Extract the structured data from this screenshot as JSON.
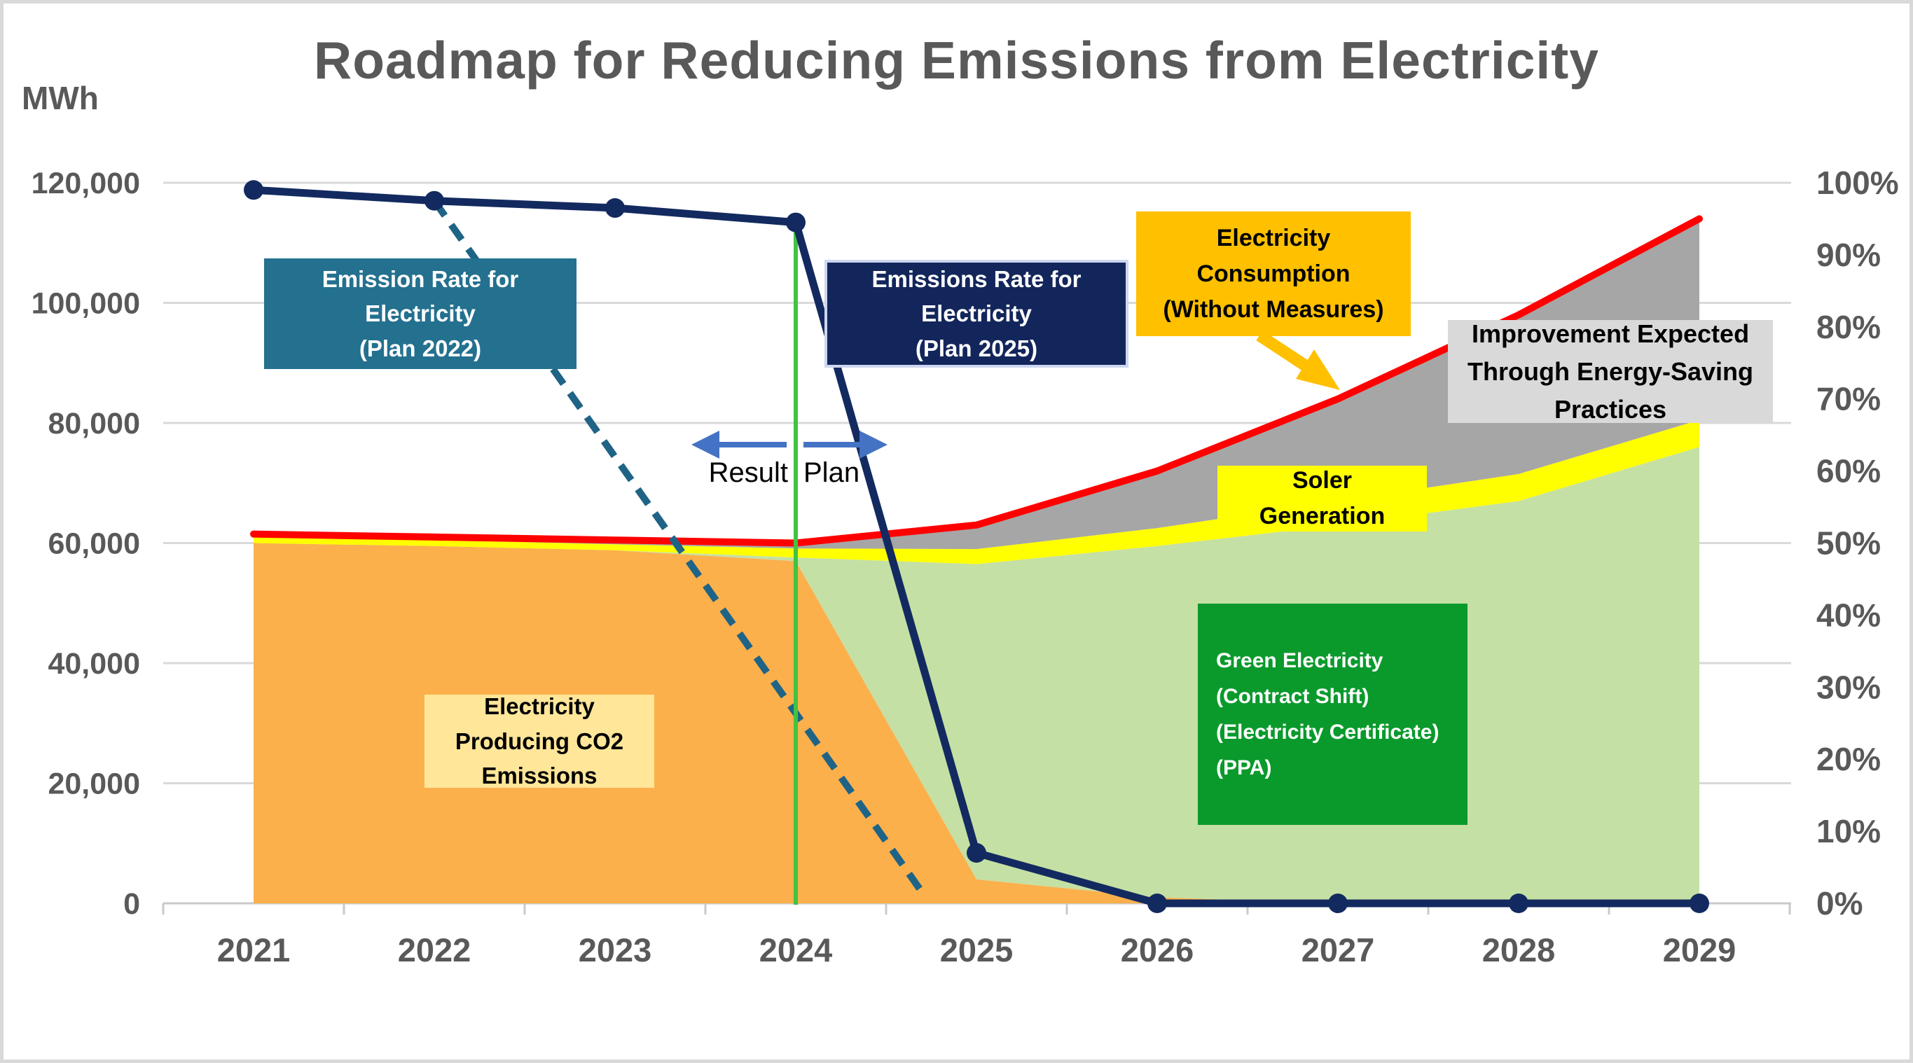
{
  "title": "Roadmap for Reducing Emissions from Electricity",
  "y_axis_left": {
    "unit_label": "MWh",
    "min": 0,
    "max": 120000,
    "step": 20000,
    "ticks_top_to_bottom": [
      "120,000",
      "100,000",
      "80,000",
      "60,000",
      "40,000",
      "20,000",
      "0"
    ]
  },
  "y_axis_right": {
    "min_pct": 0,
    "max_pct": 100,
    "step_pct": 10,
    "ticks_top_to_bottom": [
      "100%",
      "90%",
      "80%",
      "70%",
      "60%",
      "50%",
      "40%",
      "30%",
      "20%",
      "10%",
      "0%"
    ]
  },
  "x_axis": {
    "categories": [
      "2021",
      "2022",
      "2023",
      "2024",
      "2025",
      "2026",
      "2027",
      "2028",
      "2029"
    ]
  },
  "divider": {
    "year_position": "2024",
    "result_label": "Result",
    "plan_label": "Plan"
  },
  "annotations": {
    "plan2022": {
      "lines": [
        "Emission Rate for",
        "Electricity",
        "(Plan 2022)"
      ]
    },
    "plan2025": {
      "lines": [
        "Emissions Rate for",
        "Electricity",
        "(Plan 2025)"
      ]
    },
    "consumption": {
      "lines": [
        "Electricity",
        "Consumption",
        "(Without Measures)"
      ]
    },
    "improvement": {
      "lines": [
        "Improvement Expected",
        "Through Energy-Saving",
        "Practices"
      ]
    },
    "solar": {
      "lines": [
        "Soler",
        "Generation"
      ]
    },
    "green": {
      "lines": [
        "Green Electricity",
        "(Contract Shift)",
        "(Electricity Certificate)",
        "(PPA)"
      ]
    },
    "co2": {
      "lines": [
        "Electricity",
        "Producing CO2",
        "Emissions"
      ]
    }
  },
  "chart_data": {
    "type": "combo_stacked_area_line",
    "categories": [
      2021,
      2022,
      2023,
      2024,
      2025,
      2026,
      2027,
      2028,
      2029
    ],
    "left_axis": {
      "unit": "MWh",
      "range": [
        0,
        120000
      ],
      "step": 20000
    },
    "right_axis": {
      "unit": "%",
      "range": [
        0,
        100
      ],
      "step": 10
    },
    "grid": true,
    "legend": "none (labeled via annotation boxes)",
    "divider_year": 2024,
    "series": [
      {
        "name": "Electricity Producing CO2 Emissions",
        "type": "stacked_area",
        "axis": "left",
        "color_key": "area_orange",
        "values_mwh": [
          60000,
          59500,
          58800,
          57000,
          4000,
          1000,
          0,
          0,
          0
        ]
      },
      {
        "name": "Green Electricity (Contract Shift / Electricity Certificate / PPA)",
        "type": "stacked_area",
        "axis": "left",
        "color_key": "area_green",
        "values_mwh": [
          0,
          0,
          0,
          600,
          52500,
          58500,
          63000,
          67000,
          76000
        ]
      },
      {
        "name": "Soler Generation",
        "type": "stacked_area",
        "axis": "left",
        "color_key": "area_yellow",
        "values_mwh": [
          1000,
          1000,
          1000,
          1500,
          2500,
          3000,
          4000,
          4500,
          4500
        ]
      },
      {
        "name": "Improvement Expected Through Energy-Saving Practices",
        "type": "stacked_area",
        "axis": "left",
        "color_key": "area_gray",
        "values_mwh": [
          500,
          500,
          700,
          900,
          4000,
          9500,
          17000,
          26500,
          33500
        ]
      },
      {
        "name": "Electricity Consumption (Without Measures)",
        "type": "line",
        "axis": "left",
        "color_key": "red_line",
        "values_mwh": [
          61500,
          61000,
          60500,
          60000,
          63000,
          72000,
          84000,
          98000,
          114000
        ]
      },
      {
        "name": "Emissions Rate for Electricity (Plan 2025)",
        "type": "line_with_markers",
        "axis": "right",
        "color_key": "navy_line",
        "values_pct": [
          99,
          97.5,
          96.5,
          94.5,
          7,
          0,
          0,
          0,
          0
        ]
      },
      {
        "name": "Emission Rate for Electricity (Plan 2022)",
        "type": "dashed_line",
        "axis": "right",
        "color_key": "dashed_line",
        "points": [
          {
            "year": 2022,
            "pct": 97.5
          },
          {
            "year": 2024.7,
            "pct": 1.5
          }
        ]
      }
    ]
  },
  "colors": {
    "title_text": "#595959",
    "axis_text": "#595959",
    "gridline": "#D9D9D9",
    "axis_line": "#C9C9C9",
    "red_line": "#FF0000",
    "navy_line": "#132A60",
    "dashed_line": "#1F6486",
    "divider_line": "#3FC43F",
    "arrow_blue": "#4472C4",
    "arrow_gold": "#FFC000",
    "area_orange": "#FBB04C",
    "area_green": "#C5E0A4",
    "area_yellow": "#FFFF00",
    "area_gray": "#A6A6A6",
    "box_teal": "#24708F",
    "box_navy": "#13265B",
    "box_gold": "#FFC000",
    "box_gray": "#D9D9D9",
    "box_yellow": "#FFFF00",
    "box_green": "#0A9A2C",
    "box_cream": "#FFE699"
  }
}
